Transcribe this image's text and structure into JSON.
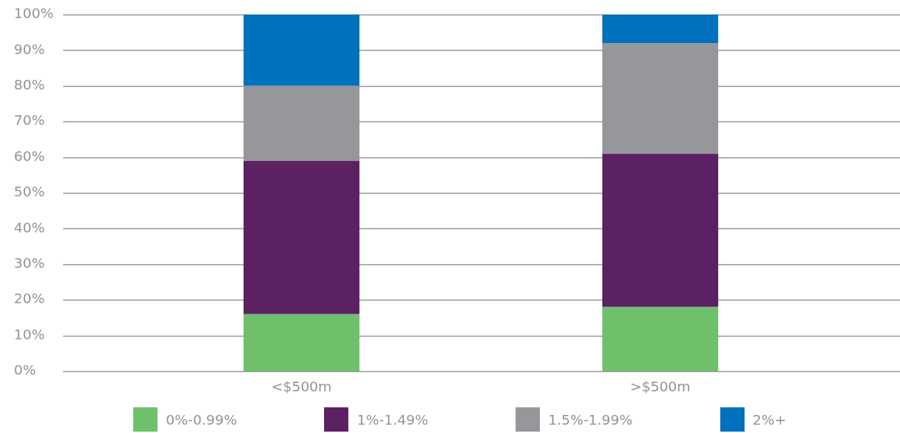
{
  "chart_data": {
    "type": "bar",
    "stacked": true,
    "categories": [
      "<$500m",
      ">$500m"
    ],
    "series": [
      {
        "name": "0%-0.99%",
        "color": "#6ec06b",
        "values": [
          16,
          18
        ]
      },
      {
        "name": "1%-1.49%",
        "color": "#5c2163",
        "values": [
          43,
          43
        ]
      },
      {
        "name": "1.5%-1.99%",
        "color": "#96979a",
        "values": [
          21,
          31
        ]
      },
      {
        "name": "2%+",
        "color": "#0071bc",
        "values": [
          20,
          8
        ]
      }
    ],
    "ylim": [
      0,
      100
    ],
    "yticks": [
      {
        "value": 0,
        "label": "0%"
      },
      {
        "value": 10,
        "label": "10%"
      },
      {
        "value": 20,
        "label": "20%"
      },
      {
        "value": 30,
        "label": "30%"
      },
      {
        "value": 40,
        "label": "40%"
      },
      {
        "value": 50,
        "label": "50%"
      },
      {
        "value": 60,
        "label": "60%"
      },
      {
        "value": 70,
        "label": "70%"
      },
      {
        "value": 80,
        "label": "80%"
      },
      {
        "value": 90,
        "label": "90%"
      },
      {
        "value": 100,
        "label": "100%"
      }
    ],
    "grid": "y",
    "legend": "bottom"
  }
}
